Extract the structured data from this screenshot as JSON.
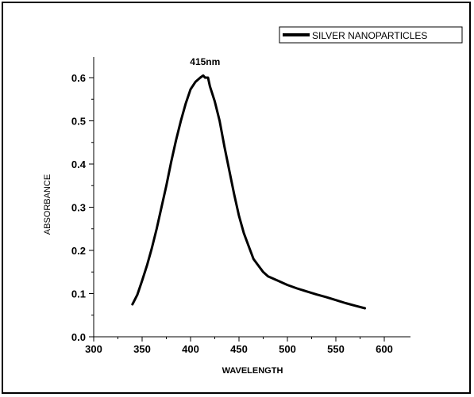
{
  "chart_data": {
    "type": "line",
    "title": "",
    "xlabel": "WAVELENGTH",
    "ylabel": "ABSORBANCE",
    "xlim": [
      300,
      600
    ],
    "ylim": [
      0.0,
      0.6
    ],
    "x_ticks": [
      300,
      350,
      400,
      450,
      500,
      550,
      600
    ],
    "x_tick_labels": [
      "300",
      "350",
      "400",
      "450",
      "500",
      "550",
      "600"
    ],
    "y_ticks": [
      0.0,
      0.1,
      0.2,
      0.3,
      0.4,
      0.5,
      0.6
    ],
    "y_tick_labels": [
      "0.0",
      "0.1",
      "0.2",
      "0.3",
      "0.4",
      "0.5",
      "0.6"
    ],
    "grid": false,
    "legend_position": "top-right",
    "annotation": {
      "text": "415nm",
      "x": 415,
      "y": 0.6
    },
    "series": [
      {
        "name": "SILVER NANOPARTICLES",
        "color": "#000000",
        "x": [
          340,
          345,
          350,
          355,
          360,
          365,
          370,
          375,
          380,
          385,
          390,
          395,
          400,
          405,
          410,
          413,
          415,
          418,
          420,
          425,
          430,
          435,
          440,
          445,
          450,
          455,
          460,
          465,
          470,
          475,
          480,
          490,
          500,
          510,
          520,
          530,
          540,
          550,
          560,
          570,
          580
        ],
        "y": [
          0.075,
          0.097,
          0.13,
          0.165,
          0.205,
          0.25,
          0.3,
          0.35,
          0.405,
          0.455,
          0.5,
          0.54,
          0.573,
          0.59,
          0.6,
          0.605,
          0.6,
          0.6,
          0.58,
          0.545,
          0.5,
          0.44,
          0.385,
          0.33,
          0.28,
          0.24,
          0.21,
          0.18,
          0.165,
          0.15,
          0.14,
          0.13,
          0.12,
          0.112,
          0.105,
          0.098,
          0.092,
          0.085,
          0.078,
          0.072,
          0.066
        ]
      }
    ]
  }
}
